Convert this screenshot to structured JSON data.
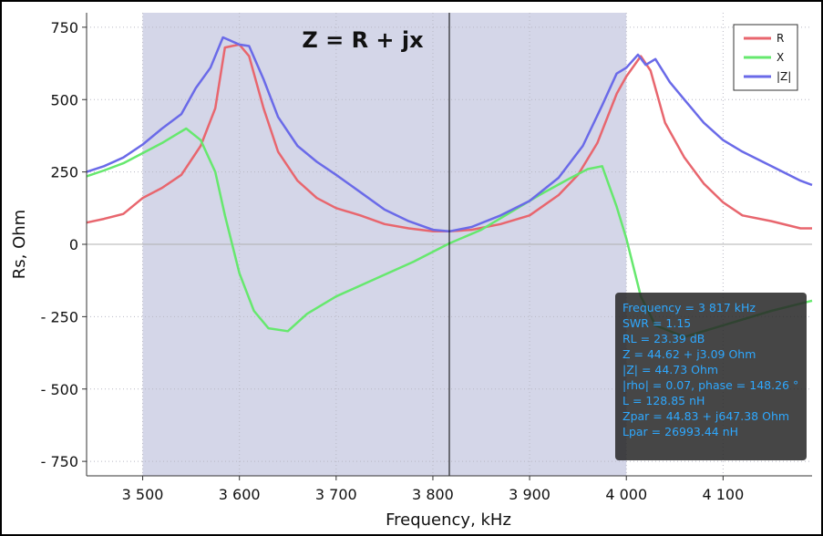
{
  "chart_data": {
    "type": "line",
    "title": "Z = R + jx",
    "xlabel": "Frequency, kHz",
    "ylabel": "Rs, Ohm",
    "xlim": [
      3442,
      4192
    ],
    "ylim": [
      -800,
      800
    ],
    "x_ticks": [
      {
        "value": 3500,
        "label": "3 500"
      },
      {
        "value": 3600,
        "label": "3 600"
      },
      {
        "value": 3700,
        "label": "3 700"
      },
      {
        "value": 3800,
        "label": "3 800"
      },
      {
        "value": 3900,
        "label": "3 900"
      },
      {
        "value": 4000,
        "label": "4 000"
      },
      {
        "value": 4100,
        "label": "4 100"
      }
    ],
    "y_ticks": [
      {
        "value": 750,
        "label": "750"
      },
      {
        "value": 500,
        "label": "500"
      },
      {
        "value": 250,
        "label": "250"
      },
      {
        "value": 0,
        "label": "0"
      },
      {
        "value": -250,
        "label": "- 250"
      },
      {
        "value": -500,
        "label": "- 500"
      },
      {
        "value": -750,
        "label": "- 750"
      }
    ],
    "grid": true,
    "band": [
      3500,
      4000
    ],
    "cursor_x": 3817,
    "legend_position": "top-right",
    "series": [
      {
        "name": "R",
        "color": "#e8666e",
        "points": [
          [
            3442,
            75
          ],
          [
            3460,
            88
          ],
          [
            3480,
            105
          ],
          [
            3500,
            160
          ],
          [
            3520,
            195
          ],
          [
            3540,
            240
          ],
          [
            3560,
            340
          ],
          [
            3575,
            470
          ],
          [
            3585,
            680
          ],
          [
            3600,
            690
          ],
          [
            3610,
            650
          ],
          [
            3625,
            470
          ],
          [
            3640,
            320
          ],
          [
            3660,
            220
          ],
          [
            3680,
            160
          ],
          [
            3700,
            125
          ],
          [
            3725,
            100
          ],
          [
            3750,
            70
          ],
          [
            3775,
            55
          ],
          [
            3800,
            45
          ],
          [
            3817,
            44.6
          ],
          [
            3840,
            50
          ],
          [
            3870,
            70
          ],
          [
            3900,
            100
          ],
          [
            3930,
            170
          ],
          [
            3950,
            240
          ],
          [
            3970,
            350
          ],
          [
            3990,
            520
          ],
          [
            4000,
            580
          ],
          [
            4015,
            650
          ],
          [
            4025,
            600
          ],
          [
            4040,
            420
          ],
          [
            4060,
            300
          ],
          [
            4080,
            210
          ],
          [
            4100,
            145
          ],
          [
            4120,
            100
          ],
          [
            4150,
            80
          ],
          [
            4180,
            55
          ],
          [
            4192,
            55
          ]
        ]
      },
      {
        "name": "X",
        "color": "#66e86e",
        "points": [
          [
            3442,
            235
          ],
          [
            3460,
            255
          ],
          [
            3480,
            280
          ],
          [
            3500,
            315
          ],
          [
            3520,
            350
          ],
          [
            3535,
            380
          ],
          [
            3545,
            400
          ],
          [
            3560,
            360
          ],
          [
            3575,
            250
          ],
          [
            3585,
            100
          ],
          [
            3600,
            -100
          ],
          [
            3615,
            -230
          ],
          [
            3630,
            -290
          ],
          [
            3650,
            -300
          ],
          [
            3670,
            -240
          ],
          [
            3700,
            -180
          ],
          [
            3740,
            -120
          ],
          [
            3780,
            -60
          ],
          [
            3817,
            3.1
          ],
          [
            3850,
            50
          ],
          [
            3880,
            110
          ],
          [
            3910,
            170
          ],
          [
            3940,
            225
          ],
          [
            3960,
            260
          ],
          [
            3975,
            270
          ],
          [
            3990,
            130
          ],
          [
            4000,
            20
          ],
          [
            4015,
            -180
          ],
          [
            4030,
            -280
          ],
          [
            4060,
            -320
          ],
          [
            4100,
            -280
          ],
          [
            4150,
            -230
          ],
          [
            4192,
            -195
          ]
        ]
      },
      {
        "name": "|Z|",
        "color": "#6a6ae8",
        "points": [
          [
            3442,
            250
          ],
          [
            3460,
            270
          ],
          [
            3480,
            300
          ],
          [
            3500,
            345
          ],
          [
            3520,
            400
          ],
          [
            3540,
            450
          ],
          [
            3555,
            540
          ],
          [
            3570,
            610
          ],
          [
            3583,
            715
          ],
          [
            3600,
            690
          ],
          [
            3610,
            685
          ],
          [
            3625,
            570
          ],
          [
            3640,
            440
          ],
          [
            3660,
            340
          ],
          [
            3680,
            285
          ],
          [
            3700,
            240
          ],
          [
            3725,
            180
          ],
          [
            3750,
            120
          ],
          [
            3775,
            80
          ],
          [
            3800,
            50
          ],
          [
            3817,
            44.7
          ],
          [
            3840,
            60
          ],
          [
            3870,
            100
          ],
          [
            3900,
            150
          ],
          [
            3930,
            230
          ],
          [
            3955,
            340
          ],
          [
            3975,
            480
          ],
          [
            3990,
            590
          ],
          [
            4000,
            610
          ],
          [
            4012,
            655
          ],
          [
            4020,
            620
          ],
          [
            4030,
            640
          ],
          [
            4045,
            560
          ],
          [
            4060,
            500
          ],
          [
            4080,
            420
          ],
          [
            4100,
            360
          ],
          [
            4120,
            320
          ],
          [
            4150,
            270
          ],
          [
            4180,
            220
          ],
          [
            4192,
            205
          ]
        ]
      }
    ],
    "info_box": [
      "Frequency = 3 817 kHz",
      "SWR = 1.15",
      "RL = 23.39 dB",
      "Z = 44.62 + j3.09 Ohm",
      "|Z| = 44.73 Ohm",
      "|rho| = 0.07, phase = 148.26 °",
      "L = 128.85 nH",
      "Zpar = 44.83 + j647.38 Ohm",
      "Lpar = 26993.44 nH"
    ]
  }
}
